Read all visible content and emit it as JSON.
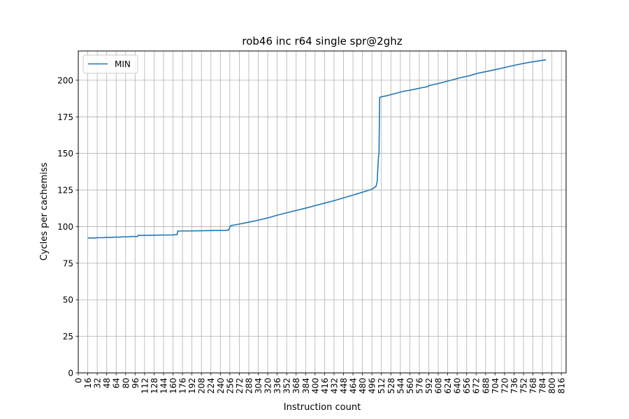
{
  "chart_data": {
    "type": "line",
    "title": "rob46 inc r64 single spr@2ghz",
    "xlabel": "Instruction count",
    "ylabel": "Cycles per cachemiss",
    "xlim": [
      0,
      824
    ],
    "ylim": [
      0,
      220
    ],
    "grid": true,
    "legend_position": "top-left",
    "x_ticks": [
      0,
      16,
      32,
      48,
      64,
      80,
      96,
      112,
      128,
      144,
      160,
      176,
      192,
      208,
      224,
      240,
      256,
      272,
      288,
      304,
      320,
      336,
      352,
      368,
      384,
      400,
      416,
      432,
      448,
      464,
      480,
      496,
      512,
      528,
      544,
      560,
      576,
      592,
      608,
      624,
      640,
      656,
      672,
      688,
      704,
      720,
      736,
      752,
      768,
      784,
      800,
      816
    ],
    "y_ticks": [
      0,
      25,
      50,
      75,
      100,
      125,
      150,
      175,
      200
    ],
    "series": [
      {
        "name": "MIN",
        "color": "#1f77b4",
        "x": [
          16,
          30,
          31,
          44,
          45,
          58,
          59,
          72,
          73,
          86,
          87,
          100,
          101,
          114,
          128,
          142,
          160,
          167,
          168,
          170,
          184,
          200,
          216,
          232,
          248,
          254,
          256,
          258,
          262,
          272,
          288,
          304,
          320,
          336,
          352,
          368,
          384,
          400,
          416,
          432,
          448,
          464,
          480,
          496,
          503,
          505,
          506,
          507,
          508,
          509,
          510,
          522,
          536,
          550,
          564,
          578,
          590,
          592,
          594,
          606,
          620,
          634,
          648,
          660,
          664,
          676,
          690,
          704,
          718,
          732,
          746,
          760,
          774,
          790
        ],
        "values": [
          92.2,
          92.2,
          92.4,
          92.4,
          92.6,
          92.6,
          92.8,
          92.8,
          93.0,
          93.0,
          93.2,
          93.2,
          94.0,
          94.0,
          94.1,
          94.2,
          94.3,
          94.5,
          96.9,
          97.0,
          97.0,
          97.1,
          97.2,
          97.3,
          97.4,
          97.6,
          99.8,
          100.6,
          101.0,
          101.7,
          103.0,
          104.4,
          105.9,
          107.8,
          109.4,
          111.0,
          112.6,
          114.3,
          116.0,
          117.7,
          119.6,
          121.5,
          123.5,
          125.5,
          127.5,
          131.0,
          140.0,
          147.0,
          150.0,
          188.0,
          188.5,
          189.5,
          191.0,
          192.5,
          193.5,
          194.7,
          195.6,
          196.2,
          196.5,
          197.5,
          199.0,
          200.5,
          202.0,
          203.0,
          203.5,
          204.9,
          206.0,
          207.2,
          208.5,
          209.8,
          211.0,
          212.1,
          213.0,
          214.0
        ]
      }
    ]
  }
}
